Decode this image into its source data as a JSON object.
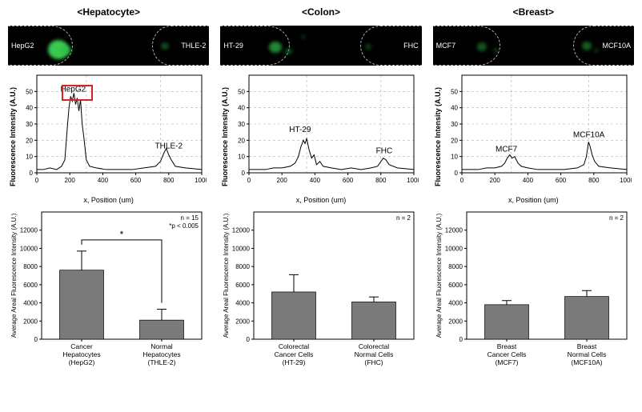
{
  "columns": [
    {
      "title": "<Hepatocyte>",
      "micrograph": {
        "background": "#000000",
        "left_label": "HepG2",
        "right_label": "THLE-2",
        "left_zone_pct": 32,
        "right_zone_pct": 28,
        "blobs": [
          {
            "left_pct": 20,
            "top_pct": 35,
            "w": 26,
            "h": 24,
            "color": "#3fe05a",
            "opacity": 0.9
          },
          {
            "left_pct": 26,
            "top_pct": 50,
            "w": 14,
            "h": 12,
            "color": "#2fbf48",
            "opacity": 0.7
          },
          {
            "left_pct": 76,
            "top_pct": 42,
            "w": 10,
            "h": 9,
            "color": "#1e8f33",
            "opacity": 0.55
          }
        ]
      },
      "line_chart": {
        "title_fontsize": 9,
        "xlabel": "x, Position (um)",
        "ylabel": "Fluorescence Intensity (A.U.)",
        "xlim": [
          0,
          1000
        ],
        "ylim": [
          0,
          60
        ],
        "xticks": [
          0,
          200,
          400,
          600,
          800,
          1000
        ],
        "yticks": [
          0,
          10,
          20,
          30,
          40,
          50
        ],
        "grid_color": "#b0b0b0",
        "grid_dash": "3 3",
        "axis_color": "#000000",
        "line_color": "#000000",
        "line_width": 1,
        "vert_guides": [
          300,
          750
        ],
        "annotations": [
          {
            "text": "HepG2",
            "x": 220,
            "y": 50,
            "fontsize": 10
          },
          {
            "text": "THLE-2",
            "x": 800,
            "y": 15,
            "fontsize": 10
          }
        ],
        "highlight": {
          "x0": 150,
          "x1": 320,
          "y0": 46,
          "y1": 54
        },
        "data": [
          {
            "x": 0,
            "y": 2
          },
          {
            "x": 40,
            "y": 2
          },
          {
            "x": 80,
            "y": 3
          },
          {
            "x": 120,
            "y": 2
          },
          {
            "x": 150,
            "y": 4
          },
          {
            "x": 170,
            "y": 8
          },
          {
            "x": 185,
            "y": 28
          },
          {
            "x": 195,
            "y": 40
          },
          {
            "x": 205,
            "y": 47
          },
          {
            "x": 215,
            "y": 44
          },
          {
            "x": 225,
            "y": 49
          },
          {
            "x": 235,
            "y": 42
          },
          {
            "x": 245,
            "y": 46
          },
          {
            "x": 255,
            "y": 38
          },
          {
            "x": 265,
            "y": 45
          },
          {
            "x": 275,
            "y": 30
          },
          {
            "x": 285,
            "y": 22
          },
          {
            "x": 300,
            "y": 8
          },
          {
            "x": 320,
            "y": 4
          },
          {
            "x": 360,
            "y": 3
          },
          {
            "x": 420,
            "y": 2
          },
          {
            "x": 500,
            "y": 2
          },
          {
            "x": 580,
            "y": 2
          },
          {
            "x": 650,
            "y": 3
          },
          {
            "x": 720,
            "y": 4
          },
          {
            "x": 750,
            "y": 7
          },
          {
            "x": 770,
            "y": 12
          },
          {
            "x": 785,
            "y": 15
          },
          {
            "x": 800,
            "y": 11
          },
          {
            "x": 815,
            "y": 8
          },
          {
            "x": 840,
            "y": 4
          },
          {
            "x": 900,
            "y": 3
          },
          {
            "x": 1000,
            "y": 2
          }
        ]
      },
      "bar_chart": {
        "ylabel": "Average Areal Fluorescence Intensity (A.U.)",
        "ylim": [
          0,
          14000
        ],
        "yticks": [
          0,
          2000,
          4000,
          6000,
          8000,
          10000,
          12000
        ],
        "grid_color": "#d8d8d8",
        "bar_color": "#7a7a7a",
        "border_color": "#000000",
        "bar_width": 0.55,
        "n_label": "n = 15",
        "p_label": "*p < 0.005",
        "sig_bracket": true,
        "sig_symbol": "*",
        "bars": [
          {
            "label_l1": "Cancer",
            "label_l2": "Hepatocytes",
            "label_l3": "(HepG2)",
            "value": 7600,
            "err": 2100
          },
          {
            "label_l1": "Normal",
            "label_l2": "Hepatocytes",
            "label_l3": "(THLE-2)",
            "value": 2100,
            "err": 1200
          }
        ]
      }
    },
    {
      "title": "<Colon>",
      "micrograph": {
        "background": "#000000",
        "left_label": "HT-29",
        "right_label": "FHC",
        "left_zone_pct": 34,
        "right_zone_pct": 30,
        "blobs": [
          {
            "left_pct": 24,
            "top_pct": 40,
            "w": 16,
            "h": 14,
            "color": "#2fbf48",
            "opacity": 0.7
          },
          {
            "left_pct": 32,
            "top_pct": 55,
            "w": 9,
            "h": 8,
            "color": "#1e7f2f",
            "opacity": 0.6
          },
          {
            "left_pct": 40,
            "top_pct": 22,
            "w": 6,
            "h": 6,
            "color": "#1e6f2a",
            "opacity": 0.4
          },
          {
            "left_pct": 72,
            "top_pct": 45,
            "w": 8,
            "h": 7,
            "color": "#1e7f2f",
            "opacity": 0.5
          }
        ]
      },
      "line_chart": {
        "xlabel": "x, Position (um)",
        "ylabel": "Fluorescence Intensity (A.U.)",
        "xlim": [
          0,
          1000
        ],
        "ylim": [
          0,
          60
        ],
        "xticks": [
          0,
          200,
          400,
          600,
          800,
          1000
        ],
        "yticks": [
          0,
          10,
          20,
          30,
          40,
          50
        ],
        "grid_color": "#b0b0b0",
        "grid_dash": "3 3",
        "axis_color": "#000000",
        "line_color": "#000000",
        "line_width": 1,
        "vert_guides": [
          350,
          800
        ],
        "annotations": [
          {
            "text": "HT-29",
            "x": 310,
            "y": 25,
            "fontsize": 10
          },
          {
            "text": "FHC",
            "x": 820,
            "y": 12,
            "fontsize": 10
          }
        ],
        "data": [
          {
            "x": 0,
            "y": 2
          },
          {
            "x": 50,
            "y": 2
          },
          {
            "x": 100,
            "y": 2
          },
          {
            "x": 150,
            "y": 3
          },
          {
            "x": 200,
            "y": 3
          },
          {
            "x": 250,
            "y": 4
          },
          {
            "x": 280,
            "y": 6
          },
          {
            "x": 300,
            "y": 10
          },
          {
            "x": 315,
            "y": 16
          },
          {
            "x": 330,
            "y": 20
          },
          {
            "x": 340,
            "y": 18
          },
          {
            "x": 350,
            "y": 21
          },
          {
            "x": 365,
            "y": 14
          },
          {
            "x": 380,
            "y": 9
          },
          {
            "x": 395,
            "y": 11
          },
          {
            "x": 410,
            "y": 5
          },
          {
            "x": 430,
            "y": 7
          },
          {
            "x": 450,
            "y": 4
          },
          {
            "x": 500,
            "y": 3
          },
          {
            "x": 560,
            "y": 2
          },
          {
            "x": 620,
            "y": 3
          },
          {
            "x": 680,
            "y": 2
          },
          {
            "x": 740,
            "y": 3
          },
          {
            "x": 780,
            "y": 4
          },
          {
            "x": 800,
            "y": 7
          },
          {
            "x": 815,
            "y": 9
          },
          {
            "x": 830,
            "y": 8
          },
          {
            "x": 850,
            "y": 5
          },
          {
            "x": 900,
            "y": 3
          },
          {
            "x": 1000,
            "y": 2
          }
        ]
      },
      "bar_chart": {
        "ylabel": "Average Areal Fluorescence Intensity (A.U.)",
        "ylim": [
          0,
          14000
        ],
        "yticks": [
          0,
          2000,
          4000,
          6000,
          8000,
          10000,
          12000
        ],
        "grid_color": "#d8d8d8",
        "bar_color": "#7a7a7a",
        "border_color": "#000000",
        "bar_width": 0.55,
        "n_label": "n = 2",
        "sig_bracket": false,
        "bars": [
          {
            "label_l1": "Colorectal",
            "label_l2": "Cancer Cells",
            "label_l3": "(HT-29)",
            "value": 5200,
            "err": 1900
          },
          {
            "label_l1": "Colorectal",
            "label_l2": "Normal Cells",
            "label_l3": "(FHC)",
            "value": 4100,
            "err": 550
          }
        ]
      }
    },
    {
      "title": "<Breast>",
      "micrograph": {
        "background": "#000000",
        "left_label": "MCF7",
        "right_label": "MCF10A",
        "left_zone_pct": 33,
        "right_zone_pct": 30,
        "blobs": [
          {
            "left_pct": 22,
            "top_pct": 42,
            "w": 12,
            "h": 11,
            "color": "#228f35",
            "opacity": 0.6
          },
          {
            "left_pct": 30,
            "top_pct": 55,
            "w": 7,
            "h": 6,
            "color": "#1a6f28",
            "opacity": 0.5
          },
          {
            "left_pct": 74,
            "top_pct": 40,
            "w": 12,
            "h": 11,
            "color": "#228f35",
            "opacity": 0.65
          },
          {
            "left_pct": 80,
            "top_pct": 55,
            "w": 6,
            "h": 6,
            "color": "#1a6f28",
            "opacity": 0.45
          }
        ]
      },
      "line_chart": {
        "xlabel": "x, Position (um)",
        "ylabel": "Fluorescence Intensity (A.U.)",
        "xlim": [
          0,
          1000
        ],
        "ylim": [
          0,
          60
        ],
        "xticks": [
          0,
          200,
          400,
          600,
          800,
          1000
        ],
        "yticks": [
          0,
          10,
          20,
          30,
          40,
          50
        ],
        "grid_color": "#b0b0b0",
        "grid_dash": "3 3",
        "axis_color": "#000000",
        "line_color": "#000000",
        "line_width": 1,
        "vert_guides": [
          300,
          770
        ],
        "annotations": [
          {
            "text": "MCF7",
            "x": 270,
            "y": 13,
            "fontsize": 10
          },
          {
            "text": "MCF10A",
            "x": 770,
            "y": 22,
            "fontsize": 10
          }
        ],
        "data": [
          {
            "x": 0,
            "y": 2
          },
          {
            "x": 50,
            "y": 2
          },
          {
            "x": 100,
            "y": 2
          },
          {
            "x": 150,
            "y": 3
          },
          {
            "x": 200,
            "y": 3
          },
          {
            "x": 240,
            "y": 4
          },
          {
            "x": 260,
            "y": 6
          },
          {
            "x": 275,
            "y": 9
          },
          {
            "x": 290,
            "y": 11
          },
          {
            "x": 305,
            "y": 9
          },
          {
            "x": 320,
            "y": 10
          },
          {
            "x": 340,
            "y": 6
          },
          {
            "x": 360,
            "y": 4
          },
          {
            "x": 400,
            "y": 3
          },
          {
            "x": 460,
            "y": 2
          },
          {
            "x": 540,
            "y": 2
          },
          {
            "x": 620,
            "y": 2
          },
          {
            "x": 700,
            "y": 3
          },
          {
            "x": 740,
            "y": 5
          },
          {
            "x": 755,
            "y": 10
          },
          {
            "x": 768,
            "y": 19
          },
          {
            "x": 778,
            "y": 16
          },
          {
            "x": 790,
            "y": 11
          },
          {
            "x": 805,
            "y": 7
          },
          {
            "x": 830,
            "y": 4
          },
          {
            "x": 900,
            "y": 3
          },
          {
            "x": 1000,
            "y": 2
          }
        ]
      },
      "bar_chart": {
        "ylabel": "Average Areal Fluorescence Intensity (A.U.)",
        "ylim": [
          0,
          14000
        ],
        "yticks": [
          0,
          2000,
          4000,
          6000,
          8000,
          10000,
          12000
        ],
        "grid_color": "#d8d8d8",
        "bar_color": "#7a7a7a",
        "border_color": "#000000",
        "bar_width": 0.55,
        "n_label": "n = 2",
        "sig_bracket": false,
        "bars": [
          {
            "label_l1": "Breast",
            "label_l2": "Cancer Cells",
            "label_l3": "(MCF7)",
            "value": 3800,
            "err": 450
          },
          {
            "label_l1": "Breast",
            "label_l2": "Normal Cells",
            "label_l3": "(MCF10A)",
            "value": 4700,
            "err": 650
          }
        ]
      }
    }
  ]
}
